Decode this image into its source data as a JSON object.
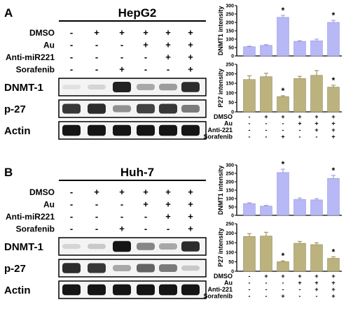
{
  "colors": {
    "dnmt_bar": "#b8b8f6",
    "dnmt_edge": "#8f8fe0",
    "p27_bar": "#bcb27e",
    "p27_edge": "#8d8450",
    "band": "#111111",
    "lane_bg": "#f4f4f4"
  },
  "panels": [
    {
      "letter": "A",
      "cell_line": "HepG2",
      "treatments": [
        {
          "label": "DMSO",
          "signs": [
            "-",
            "+",
            "+",
            "+",
            "+",
            "+"
          ]
        },
        {
          "label": "Au",
          "signs": [
            "-",
            "-",
            "-",
            "+",
            "+",
            "+"
          ]
        },
        {
          "label": "Anti-miR221",
          "signs": [
            "-",
            "-",
            "-",
            "-",
            "+",
            "+"
          ]
        },
        {
          "label": "Sorafenib",
          "signs": [
            "-",
            "-",
            "+",
            "-",
            "-",
            "+"
          ]
        }
      ],
      "blots": [
        {
          "label": "DNMT-1",
          "intensity": [
            0.05,
            0.1,
            0.9,
            0.3,
            0.35,
            0.85
          ]
        },
        {
          "label": "p-27",
          "intensity": [
            0.8,
            0.85,
            0.4,
            0.75,
            0.8,
            0.5
          ]
        },
        {
          "label": "Actin",
          "intensity": [
            0.95,
            0.95,
            0.95,
            0.95,
            0.95,
            0.95
          ]
        }
      ],
      "chart_data": [
        {
          "type": "bar",
          "ylabel": "DNMT1 intensity",
          "ylim": [
            0,
            300
          ],
          "yticks": [
            "0",
            "50",
            "100",
            "150",
            "200",
            "250",
            "300"
          ],
          "values": [
            55,
            63,
            230,
            87,
            90,
            200
          ],
          "errors": [
            3,
            4,
            12,
            4,
            10,
            12
          ],
          "significant": [
            false,
            false,
            true,
            false,
            false,
            true
          ],
          "sig_marker": "*"
        },
        {
          "type": "bar",
          "ylabel": "P27 intensity",
          "ylim": [
            0,
            250
          ],
          "yticks": [
            "0",
            "50",
            "100",
            "150",
            "200",
            "250"
          ],
          "values": [
            170,
            185,
            80,
            175,
            192,
            130
          ],
          "errors": [
            20,
            18,
            5,
            12,
            25,
            10
          ],
          "significant": [
            false,
            false,
            true,
            false,
            false,
            true
          ],
          "sig_marker": "*",
          "treatments": [
            {
              "label": "DMSO",
              "signs": [
                "-",
                "+",
                "+",
                "+",
                "+",
                "+"
              ]
            },
            {
              "label": "Au",
              "signs": [
                "-",
                "-",
                "-",
                "+",
                "+",
                "+"
              ]
            },
            {
              "label": "Anti-221",
              "signs": [
                "-",
                "-",
                "-",
                "-",
                "+",
                "+"
              ]
            },
            {
              "label": "Sorafenib",
              "signs": [
                "-",
                "-",
                "+",
                "-",
                "-",
                "+"
              ]
            }
          ]
        }
      ]
    },
    {
      "letter": "B",
      "cell_line": "Huh-7",
      "treatments": [
        {
          "label": "DMSO",
          "signs": [
            "-",
            "+",
            "+",
            "+",
            "+",
            "+"
          ]
        },
        {
          "label": "Au",
          "signs": [
            "-",
            "-",
            "-",
            "+",
            "+",
            "+"
          ]
        },
        {
          "label": "Anti-miR221",
          "signs": [
            "-",
            "-",
            "-",
            "-",
            "+",
            "+"
          ]
        },
        {
          "label": "Sorafenib",
          "signs": [
            "-",
            "-",
            "+",
            "-",
            "-",
            "+"
          ]
        }
      ],
      "blots": [
        {
          "label": "DNMT-1",
          "intensity": [
            0.1,
            0.15,
            0.95,
            0.45,
            0.3,
            0.85
          ]
        },
        {
          "label": "p-27",
          "intensity": [
            0.85,
            0.8,
            0.3,
            0.6,
            0.5,
            0.15
          ]
        },
        {
          "label": "Actin",
          "intensity": [
            0.95,
            0.95,
            0.95,
            0.95,
            0.95,
            0.95
          ]
        }
      ],
      "chart_data": [
        {
          "type": "bar",
          "ylabel": "DNMT1 intensity",
          "ylim": [
            0,
            300
          ],
          "yticks": [
            "0",
            "50",
            "100",
            "150",
            "200",
            "250",
            "300"
          ],
          "values": [
            70,
            55,
            255,
            95,
            92,
            220
          ],
          "errors": [
            5,
            4,
            20,
            8,
            7,
            18
          ],
          "significant": [
            false,
            false,
            true,
            false,
            false,
            true
          ],
          "sig_marker": "*"
        },
        {
          "type": "bar",
          "ylabel": "P27 intensity",
          "ylim": [
            0,
            250
          ],
          "yticks": [
            "0",
            "50",
            "100",
            "150",
            "200",
            "250"
          ],
          "values": [
            183,
            185,
            50,
            147,
            140,
            68
          ],
          "errors": [
            15,
            20,
            5,
            10,
            10,
            8
          ],
          "significant": [
            false,
            false,
            true,
            false,
            false,
            true
          ],
          "sig_marker": "*",
          "treatments": [
            {
              "label": "DMSO",
              "signs": [
                "-",
                "+",
                "+",
                "+",
                "+",
                "+"
              ]
            },
            {
              "label": "Au",
              "signs": [
                "-",
                "-",
                "-",
                "+",
                "+",
                "+"
              ]
            },
            {
              "label": "Anti-221",
              "signs": [
                "-",
                "-",
                "-",
                "-",
                "+",
                "+"
              ]
            },
            {
              "label": "Sorafenib",
              "signs": [
                "-",
                "-",
                "+",
                "-",
                "-",
                "+"
              ]
            }
          ]
        }
      ]
    }
  ]
}
